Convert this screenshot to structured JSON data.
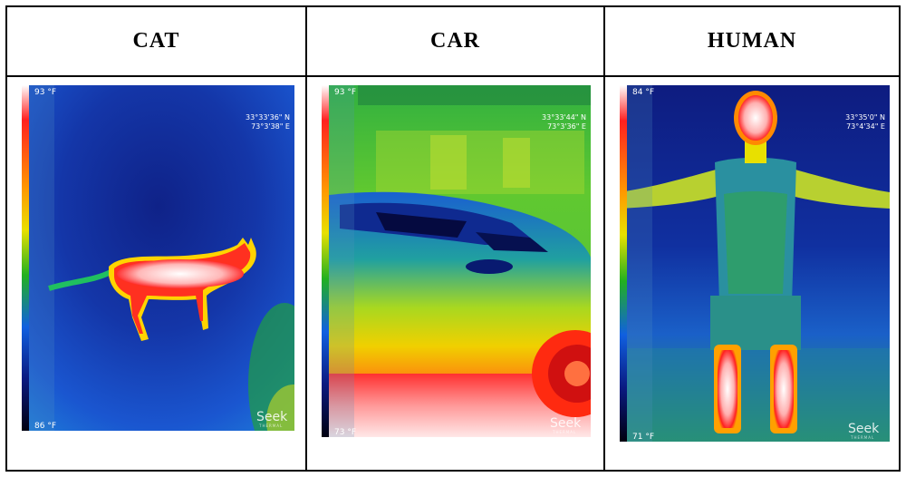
{
  "columns": [
    {
      "title": "CAT",
      "scale_max": "93 °F",
      "scale_min": "86 °F",
      "lat": "33°33'36\" N",
      "lon": "73°3'38\" E",
      "brand": "Seek",
      "brand_sub": "THERMAL"
    },
    {
      "title": "CAR",
      "scale_max": "93 °F",
      "scale_min": "73 °F",
      "lat": "33°33'44\" N",
      "lon": "73°3'36\" E",
      "brand": "Seek",
      "brand_sub": "THERMAL"
    },
    {
      "title": "HUMAN",
      "scale_max": "84 °F",
      "scale_min": "71 °F",
      "lat": "33°35'0\" N",
      "lon": "73°4'34\" E",
      "brand": "Seek",
      "brand_sub": "THERMAL"
    }
  ]
}
